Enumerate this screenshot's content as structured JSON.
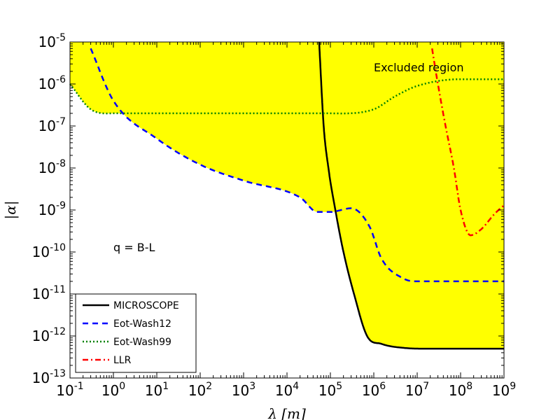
{
  "chart_data": {
    "type": "line",
    "title": "",
    "xlabel": "λ [m]",
    "ylabel": "|α|",
    "xscale": "log",
    "yscale": "log",
    "xlim": [
      0.1,
      1000000000
    ],
    "ylim": [
      1e-13,
      1e-05
    ],
    "x_ticks": [
      {
        "base": "10",
        "exp": "-1",
        "value": 0.1
      },
      {
        "base": "10",
        "exp": "0",
        "value": 1
      },
      {
        "base": "10",
        "exp": "1",
        "value": 10
      },
      {
        "base": "10",
        "exp": "2",
        "value": 100
      },
      {
        "base": "10",
        "exp": "3",
        "value": 1000
      },
      {
        "base": "10",
        "exp": "4",
        "value": 10000
      },
      {
        "base": "10",
        "exp": "5",
        "value": 100000
      },
      {
        "base": "10",
        "exp": "6",
        "value": 1000000
      },
      {
        "base": "10",
        "exp": "7",
        "value": 10000000
      },
      {
        "base": "10",
        "exp": "8",
        "value": 100000000
      },
      {
        "base": "10",
        "exp": "9",
        "value": 1000000000
      }
    ],
    "y_ticks": [
      {
        "base": "10",
        "exp": "-13",
        "value": 1e-13
      },
      {
        "base": "10",
        "exp": "-12",
        "value": 1e-12
      },
      {
        "base": "10",
        "exp": "-11",
        "value": 1e-11
      },
      {
        "base": "10",
        "exp": "-10",
        "value": 1e-10
      },
      {
        "base": "10",
        "exp": "-9",
        "value": 1e-09
      },
      {
        "base": "10",
        "exp": "-8",
        "value": 1e-08
      },
      {
        "base": "10",
        "exp": "-7",
        "value": 1e-07
      },
      {
        "base": "10",
        "exp": "-6",
        "value": 1e-06
      },
      {
        "base": "10",
        "exp": "-5",
        "value": 1e-05
      }
    ],
    "annotations": {
      "excluded": "Excluded region",
      "charge": "q = B-L"
    },
    "legend_position": "lower-left",
    "excluded_fill_color": "#ffff00",
    "series": [
      {
        "name": "MICROSCOPE",
        "color": "#000000",
        "style": "solid",
        "points": [
          [
            55000,
            1e-05
          ],
          [
            70000,
            1e-07
          ],
          [
            90000,
            1e-08
          ],
          [
            130000,
            1e-09
          ],
          [
            200000,
            1e-10
          ],
          [
            350000,
            1e-11
          ],
          [
            700000,
            1e-12
          ],
          [
            1500000,
            6.5e-13
          ],
          [
            5000000,
            5.2e-13
          ],
          [
            20000000,
            5e-13
          ],
          [
            1000000000,
            5e-13
          ]
        ]
      },
      {
        "name": "Eot-Wash12",
        "color": "#0000ff",
        "style": "dashed",
        "points": [
          [
            0.3,
            7e-06
          ],
          [
            1,
            4e-07
          ],
          [
            10,
            5e-08
          ],
          [
            100,
            1.2e-08
          ],
          [
            1000,
            5e-09
          ],
          [
            20000,
            2e-09
          ],
          [
            50000,
            9e-10
          ],
          [
            100000,
            9e-10
          ],
          [
            300000,
            1.1e-09
          ],
          [
            800000,
            4e-10
          ],
          [
            1500000,
            7e-11
          ],
          [
            5000000,
            2.3e-11
          ],
          [
            10000000,
            2e-11
          ],
          [
            1000000000,
            2e-11
          ]
        ]
      },
      {
        "name": "Eot-Wash99",
        "color": "#008000",
        "style": "dotted",
        "points": [
          [
            0.1,
            1e-06
          ],
          [
            0.3,
            2.5e-07
          ],
          [
            1,
            2e-07
          ],
          [
            100,
            2e-07
          ],
          [
            100000,
            2e-07
          ],
          [
            1000000,
            2.5e-07
          ],
          [
            3000000,
            5e-07
          ],
          [
            10000000,
            9e-07
          ],
          [
            100000000,
            1.3e-06
          ],
          [
            1000000000,
            1.3e-06
          ]
        ]
      },
      {
        "name": "LLR",
        "color": "#ff0000",
        "style": "dashdot",
        "points": [
          [
            22000000,
            7e-06
          ],
          [
            30000000,
            1e-06
          ],
          [
            45000000,
            1e-07
          ],
          [
            70000000,
            1e-08
          ],
          [
            100000000,
            1e-09
          ],
          [
            170000000,
            2.5e-10
          ],
          [
            300000000,
            3.5e-10
          ],
          [
            600000000,
            8e-10
          ],
          [
            1000000000,
            1.3e-09
          ]
        ]
      }
    ]
  }
}
